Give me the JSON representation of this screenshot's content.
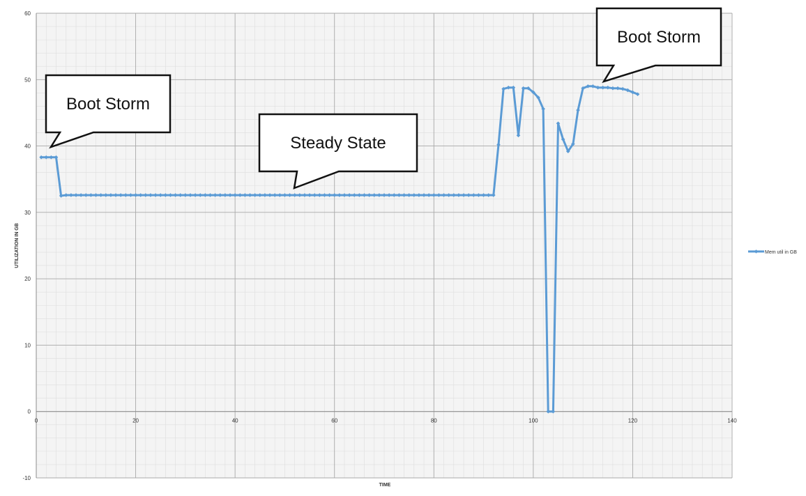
{
  "chart_data": {
    "type": "line",
    "xlabel": "TIME",
    "ylabel": "UTILIZATION IN GB",
    "xlim": [
      0,
      140
    ],
    "ylim": [
      -10,
      60
    ],
    "x_ticks": [
      0,
      20,
      40,
      60,
      80,
      100,
      120,
      140
    ],
    "y_ticks": [
      -10,
      0,
      10,
      20,
      30,
      40,
      50,
      60
    ],
    "grid": "on (major and minor)",
    "legend_position": "right",
    "series": [
      {
        "name": "Mem util in GB",
        "color": "#5b9bd5",
        "marker": "diamond",
        "points": [
          [
            1,
            38.3
          ],
          [
            2,
            38.3
          ],
          [
            3,
            38.3
          ],
          [
            4,
            38.3
          ],
          [
            5,
            32.5
          ],
          [
            6,
            32.6
          ],
          [
            7,
            32.6
          ],
          [
            8,
            32.6
          ],
          [
            9,
            32.6
          ],
          [
            10,
            32.6
          ],
          [
            11,
            32.6
          ],
          [
            12,
            32.6
          ],
          [
            13,
            32.6
          ],
          [
            14,
            32.6
          ],
          [
            15,
            32.6
          ],
          [
            16,
            32.6
          ],
          [
            17,
            32.6
          ],
          [
            18,
            32.6
          ],
          [
            19,
            32.6
          ],
          [
            20,
            32.6
          ],
          [
            21,
            32.6
          ],
          [
            22,
            32.6
          ],
          [
            23,
            32.6
          ],
          [
            24,
            32.6
          ],
          [
            25,
            32.6
          ],
          [
            26,
            32.6
          ],
          [
            27,
            32.6
          ],
          [
            28,
            32.6
          ],
          [
            29,
            32.6
          ],
          [
            30,
            32.6
          ],
          [
            31,
            32.6
          ],
          [
            32,
            32.6
          ],
          [
            33,
            32.6
          ],
          [
            34,
            32.6
          ],
          [
            35,
            32.6
          ],
          [
            36,
            32.6
          ],
          [
            37,
            32.6
          ],
          [
            38,
            32.6
          ],
          [
            39,
            32.6
          ],
          [
            40,
            32.6
          ],
          [
            41,
            32.6
          ],
          [
            42,
            32.6
          ],
          [
            43,
            32.6
          ],
          [
            44,
            32.6
          ],
          [
            45,
            32.6
          ],
          [
            46,
            32.6
          ],
          [
            47,
            32.6
          ],
          [
            48,
            32.6
          ],
          [
            49,
            32.6
          ],
          [
            50,
            32.6
          ],
          [
            51,
            32.6
          ],
          [
            52,
            32.6
          ],
          [
            53,
            32.6
          ],
          [
            54,
            32.6
          ],
          [
            55,
            32.6
          ],
          [
            56,
            32.6
          ],
          [
            57,
            32.6
          ],
          [
            58,
            32.6
          ],
          [
            59,
            32.6
          ],
          [
            60,
            32.6
          ],
          [
            61,
            32.6
          ],
          [
            62,
            32.6
          ],
          [
            63,
            32.6
          ],
          [
            64,
            32.6
          ],
          [
            65,
            32.6
          ],
          [
            66,
            32.6
          ],
          [
            67,
            32.6
          ],
          [
            68,
            32.6
          ],
          [
            69,
            32.6
          ],
          [
            70,
            32.6
          ],
          [
            71,
            32.6
          ],
          [
            72,
            32.6
          ],
          [
            73,
            32.6
          ],
          [
            74,
            32.6
          ],
          [
            75,
            32.6
          ],
          [
            76,
            32.6
          ],
          [
            77,
            32.6
          ],
          [
            78,
            32.6
          ],
          [
            79,
            32.6
          ],
          [
            80,
            32.6
          ],
          [
            81,
            32.6
          ],
          [
            82,
            32.6
          ],
          [
            83,
            32.6
          ],
          [
            84,
            32.6
          ],
          [
            85,
            32.6
          ],
          [
            86,
            32.6
          ],
          [
            87,
            32.6
          ],
          [
            88,
            32.6
          ],
          [
            89,
            32.6
          ],
          [
            90,
            32.6
          ],
          [
            91,
            32.6
          ],
          [
            92,
            32.6
          ],
          [
            93,
            40.2
          ],
          [
            94,
            48.6
          ],
          [
            95,
            48.8
          ],
          [
            96,
            48.8
          ],
          [
            97,
            41.6
          ],
          [
            98,
            48.7
          ],
          [
            99,
            48.7
          ],
          [
            100,
            48.1
          ],
          [
            101,
            47.3
          ],
          [
            102,
            45.6
          ],
          [
            103,
            0.0
          ],
          [
            104,
            0.0
          ],
          [
            105,
            43.4
          ],
          [
            106,
            41.0
          ],
          [
            107,
            39.2
          ],
          [
            108,
            40.3
          ],
          [
            109,
            45.4
          ],
          [
            110,
            48.7
          ],
          [
            111,
            49.0
          ],
          [
            112,
            49.0
          ],
          [
            113,
            48.8
          ],
          [
            114,
            48.8
          ],
          [
            115,
            48.8
          ],
          [
            116,
            48.7
          ],
          [
            117,
            48.7
          ],
          [
            118,
            48.6
          ],
          [
            119,
            48.4
          ],
          [
            120,
            48.1
          ],
          [
            121,
            47.8
          ]
        ]
      }
    ],
    "annotations": [
      {
        "label": "Boot Storm",
        "pointer": "lower-left"
      },
      {
        "label": "Steady State",
        "pointer": "lower-middle"
      },
      {
        "label": "Boot Storm",
        "pointer": "lower-left"
      }
    ]
  }
}
